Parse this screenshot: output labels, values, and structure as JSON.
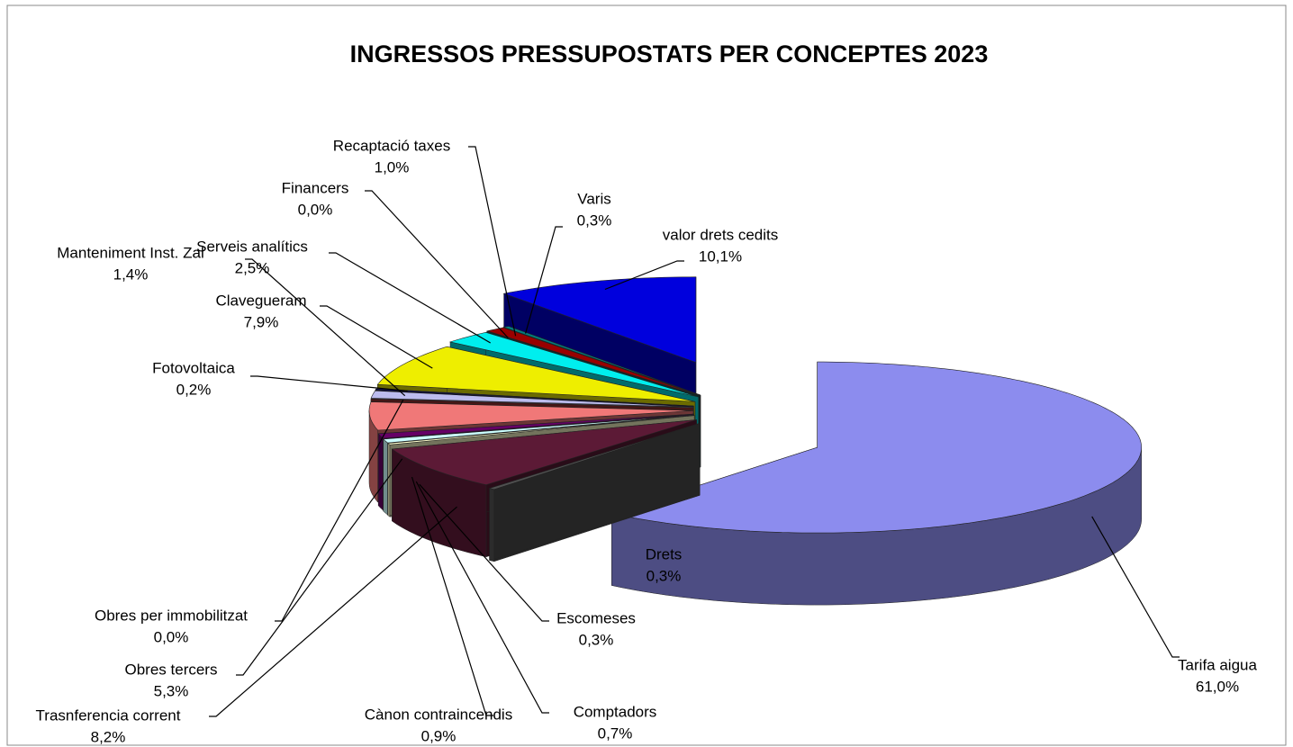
{
  "chart_data": {
    "type": "pie",
    "title": "INGRESSOS PRESSUPOSTATS  PER CONCEPTES 2023",
    "categories": [
      "Tarifa aigua",
      "Drets",
      "Trasnferencia corrent",
      "Escomeses",
      "Comptadors",
      "Cànon contraincendis",
      "Obres tercers",
      "Obres per immobilitzat",
      "Manteniment Inst. Zal",
      "Fotovoltaica",
      "Clavegueram",
      "Serveis analítics",
      "Financers",
      "Recaptació taxes",
      "Varis",
      "valor drets cedits"
    ],
    "values": [
      61.0,
      0.3,
      8.2,
      0.3,
      0.7,
      0.9,
      5.3,
      0.0,
      1.4,
      0.2,
      7.9,
      2.5,
      0.0,
      1.0,
      0.3,
      10.1
    ],
    "value_labels": [
      "61,0%",
      "0,3%",
      "8,2%",
      "0,3%",
      "0,7%",
      "0,9%",
      "5,3%",
      "0,0%",
      "1,4%",
      "0,2%",
      "7,9%",
      "2,5%",
      "0,0%",
      "1,0%",
      "0,3%",
      "10,1%"
    ],
    "colors": [
      "#8c8cee",
      "#505050",
      "#5c1a36",
      "#ffffcc",
      "#ccffff",
      "#660066",
      "#f07878",
      "#993333",
      "#bcbcee",
      "#000066",
      "#eeee00",
      "#00eeee",
      "#006666",
      "#990000",
      "#008080",
      "#0000dd"
    ]
  }
}
